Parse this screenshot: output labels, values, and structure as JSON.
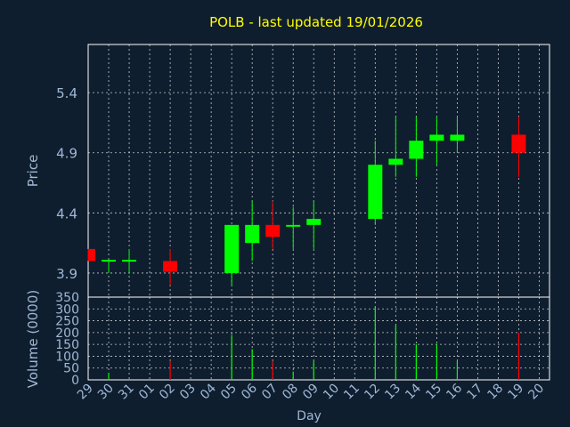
{
  "title": "POLB - last updated 19/01/2026",
  "colors": {
    "background": "#0f1e2e",
    "plot_border": "#ffffff",
    "grid": "#ffffff",
    "title": "#ffff00",
    "axis_text": "#9fb8d6",
    "up": "#00ff00",
    "down": "#ff0000"
  },
  "chart_data": [
    {
      "type": "candlestick",
      "ylabel": "Price",
      "ylim": [
        3.7,
        5.8
      ],
      "yticks": [
        "5.4",
        "4.9",
        "4.4",
        "3.9"
      ],
      "ytick_values": [
        5.4,
        4.9,
        4.4,
        3.9
      ],
      "grid": true,
      "candles": [
        {
          "day": "29",
          "open": 4.1,
          "high": 4.1,
          "low": 4.0,
          "close": 4.0
        },
        {
          "day": "30",
          "open": 4.01,
          "high": 4.01,
          "low": 3.9,
          "close": 4.01
        },
        {
          "day": "31",
          "open": 4.01,
          "high": 4.1,
          "low": 3.9,
          "close": 4.01
        },
        {
          "day": "02",
          "open": 4.0,
          "high": 4.1,
          "low": 3.8,
          "close": 3.91
        },
        {
          "day": "05",
          "open": 3.9,
          "high": 4.3,
          "low": 3.8,
          "close": 4.3
        },
        {
          "day": "06",
          "open": 4.15,
          "high": 4.5,
          "low": 4.0,
          "close": 4.3
        },
        {
          "day": "07",
          "open": 4.3,
          "high": 4.5,
          "low": 4.1,
          "close": 4.2
        },
        {
          "day": "08",
          "open": 4.29,
          "high": 4.45,
          "low": 4.1,
          "close": 4.3
        },
        {
          "day": "09",
          "open": 4.3,
          "high": 4.5,
          "low": 4.1,
          "close": 4.35
        },
        {
          "day": "12",
          "open": 4.35,
          "high": 5.0,
          "low": 4.3,
          "close": 4.8
        },
        {
          "day": "13",
          "open": 4.8,
          "high": 5.2,
          "low": 4.7,
          "close": 4.85
        },
        {
          "day": "14",
          "open": 4.85,
          "high": 5.2,
          "low": 4.7,
          "close": 5.0
        },
        {
          "day": "15",
          "open": 5.0,
          "high": 5.2,
          "low": 4.8,
          "close": 5.05
        },
        {
          "day": "16",
          "open": 5.0,
          "high": 5.2,
          "low": 4.9,
          "close": 5.05
        },
        {
          "day": "19",
          "open": 5.05,
          "high": 5.2,
          "low": 4.7,
          "close": 4.9
        }
      ]
    },
    {
      "type": "bar",
      "ylabel": "Volume (0000)",
      "xlabel": "Day",
      "ylim": [
        0,
        350
      ],
      "yticks": [
        "350",
        "300",
        "250",
        "200",
        "150",
        "100",
        "50",
        "0"
      ],
      "ytick_values": [
        350,
        300,
        250,
        200,
        150,
        100,
        50,
        0
      ],
      "grid": true,
      "categories": [
        "29",
        "30",
        "31",
        "01",
        "02",
        "03",
        "04",
        "05",
        "06",
        "07",
        "08",
        "09",
        "10",
        "11",
        "12",
        "13",
        "14",
        "15",
        "16",
        "17",
        "18",
        "19",
        "20"
      ],
      "values": [
        0,
        30,
        0,
        0,
        80,
        0,
        0,
        190,
        130,
        80,
        35,
        80,
        0,
        0,
        310,
        230,
        150,
        150,
        80,
        0,
        0,
        200,
        0
      ],
      "bar_colors": [
        "up",
        "up",
        "up",
        "up",
        "down",
        "up",
        "up",
        "up",
        "up",
        "down",
        "up",
        "up",
        "up",
        "up",
        "up",
        "up",
        "up",
        "up",
        "up",
        "up",
        "up",
        "down",
        "up"
      ]
    }
  ]
}
